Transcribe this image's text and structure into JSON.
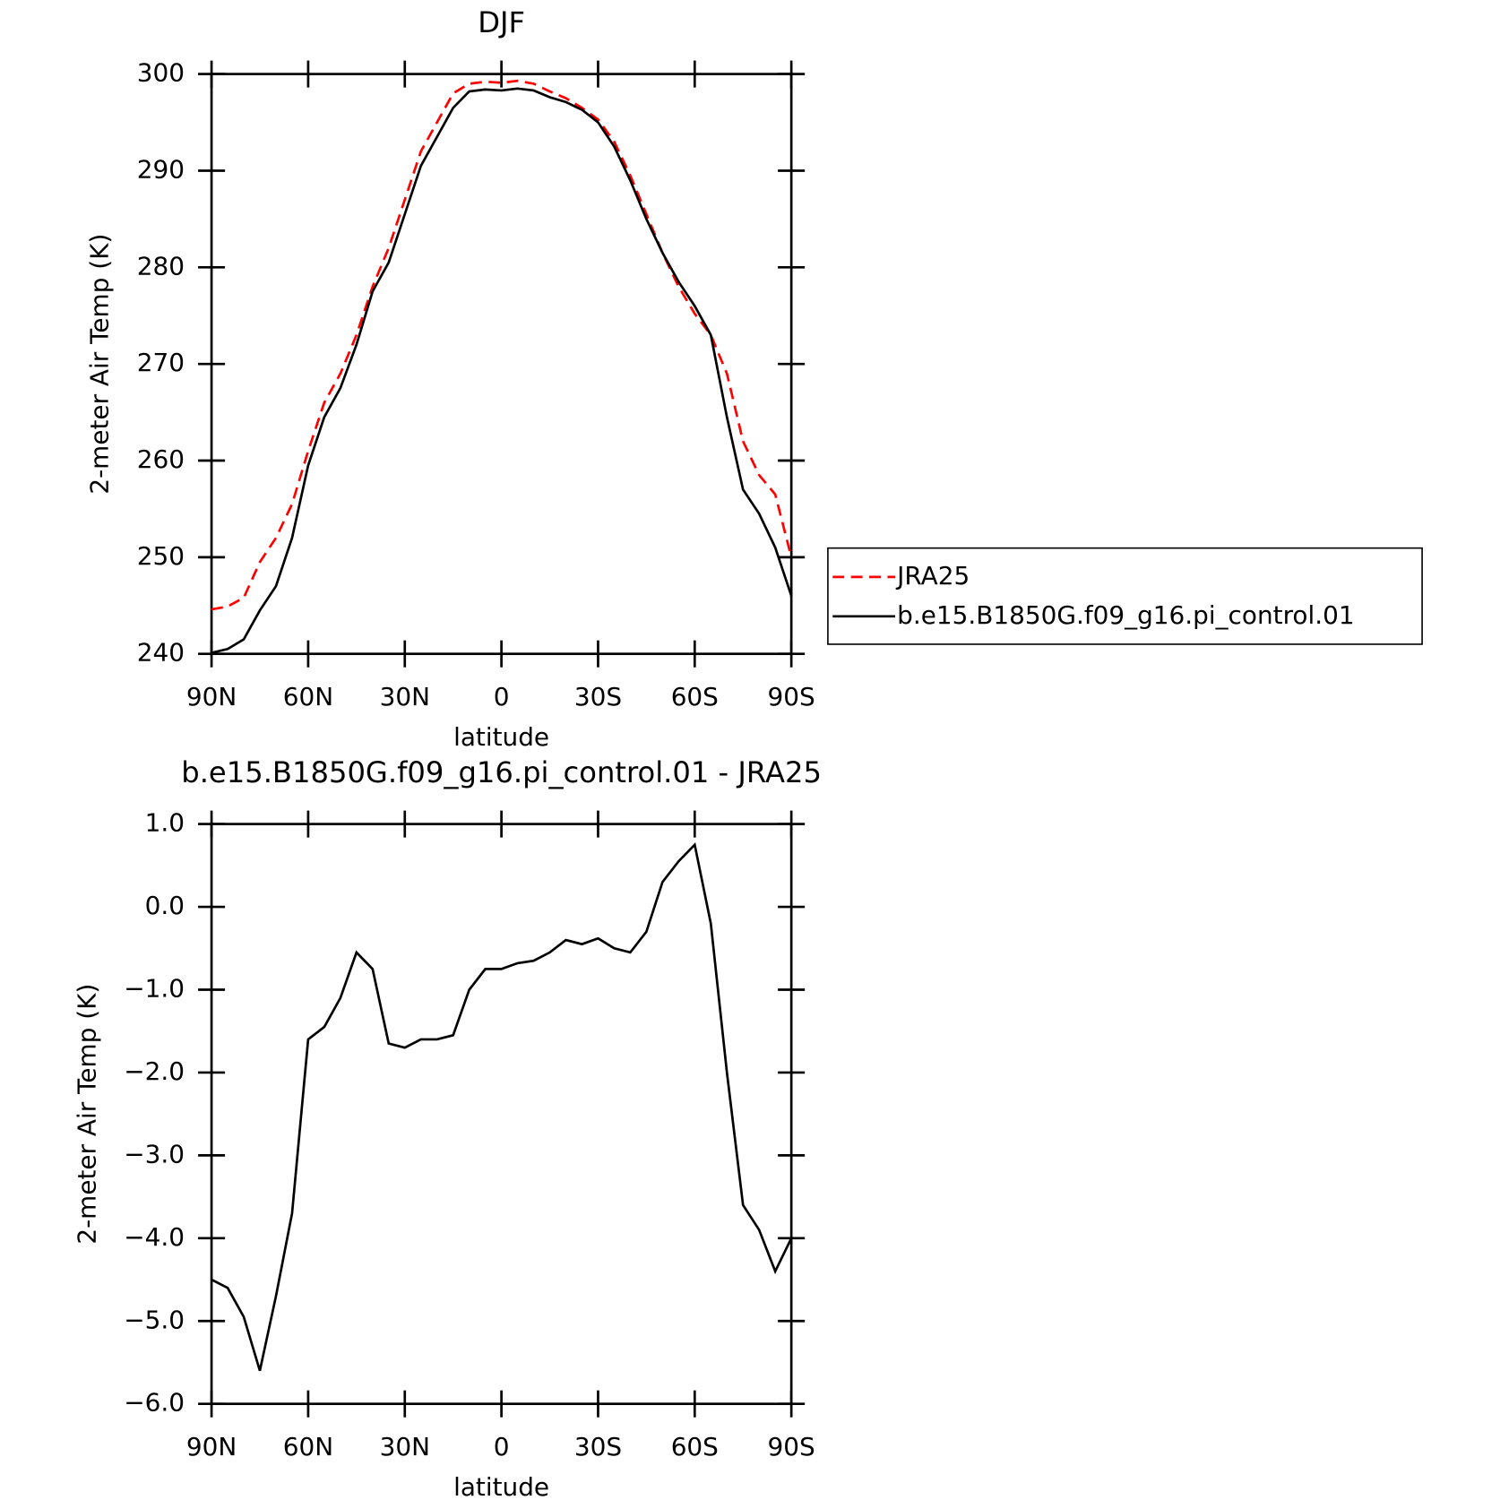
{
  "chart_data": [
    {
      "type": "line",
      "title": "DJF",
      "xlabel": "latitude",
      "ylabel": "2-meter Air Temp (K)",
      "x": [
        90,
        85,
        80,
        75,
        70,
        65,
        60,
        55,
        50,
        45,
        40,
        35,
        30,
        25,
        20,
        15,
        10,
        5,
        0,
        -5,
        -10,
        -15,
        -20,
        -25,
        -30,
        -35,
        -40,
        -45,
        -50,
        -55,
        -60,
        -65,
        -70,
        -75,
        -80,
        -85,
        -90
      ],
      "series": [
        {
          "name": "JRA25",
          "color": "#ff0000",
          "dash": "dashed",
          "values": [
            244.6,
            244.9,
            245.8,
            249.5,
            252,
            255.5,
            261,
            266,
            269,
            273,
            278,
            282,
            287,
            292,
            295,
            298,
            299,
            299.2,
            299.1,
            299.3,
            299,
            298.2,
            297.5,
            296.5,
            295.3,
            293,
            289.5,
            285.5,
            281.5,
            278,
            275.2,
            273,
            269,
            262,
            258.5,
            256.5,
            250
          ]
        },
        {
          "name": "b.e15.B1850G.f09_g16.pi_control.01",
          "color": "#000000",
          "dash": "solid",
          "values": [
            240.1,
            240.5,
            241.5,
            244.5,
            247,
            252,
            259.5,
            264.5,
            267.5,
            272,
            277.5,
            280.5,
            285.5,
            290.5,
            293.5,
            296.5,
            298.2,
            298.4,
            298.3,
            298.5,
            298.3,
            297.6,
            297.1,
            296.3,
            295,
            292.5,
            289,
            285,
            281.5,
            278.5,
            276,
            273,
            264.5,
            257,
            254.5,
            251,
            246
          ]
        }
      ],
      "xlim": [
        90,
        -90
      ],
      "xticks": [
        {
          "value": 90,
          "label": "90N"
        },
        {
          "value": 60,
          "label": "60N"
        },
        {
          "value": 30,
          "label": "30N"
        },
        0,
        {
          "value": -30,
          "label": "30S"
        },
        {
          "value": -60,
          "label": "60S"
        },
        {
          "value": -90,
          "label": "90S"
        }
      ],
      "ylim": [
        240,
        300
      ],
      "yticks": [
        240,
        250,
        260,
        270,
        280,
        290,
        300
      ],
      "legend": "right"
    },
    {
      "type": "line",
      "title": "b.e15.B1850G.f09_g16.pi_control.01 - JRA25",
      "xlabel": "latitude",
      "ylabel": "2-meter Air Temp (K)",
      "x": [
        90,
        85,
        80,
        75,
        70,
        65,
        60,
        55,
        50,
        45,
        40,
        35,
        30,
        25,
        20,
        15,
        10,
        5,
        0,
        -5,
        -10,
        -15,
        -20,
        -25,
        -30,
        -35,
        -40,
        -45,
        -50,
        -55,
        -60,
        -65,
        -70,
        -75,
        -80,
        -85,
        -90
      ],
      "series": [
        {
          "color": "#000000",
          "dash": "solid",
          "values": [
            -4.5,
            -4.6,
            -4.95,
            -5.6,
            -4.7,
            -3.7,
            -1.6,
            -1.45,
            -1.1,
            -0.55,
            -0.75,
            -1.65,
            -1.7,
            -1.6,
            -1.6,
            -1.55,
            -1.0,
            -0.75,
            -0.75,
            -0.68,
            -0.65,
            -0.55,
            -0.4,
            -0.45,
            -0.38,
            -0.5,
            -0.55,
            -0.3,
            0.3,
            0.55,
            0.75,
            -0.2,
            -2.0,
            -3.6,
            -3.9,
            -4.4,
            -4.0
          ]
        }
      ],
      "xlim": [
        90,
        -90
      ],
      "xticks": [
        {
          "value": 90,
          "label": "90N"
        },
        {
          "value": 60,
          "label": "60N"
        },
        {
          "value": 30,
          "label": "30N"
        },
        0,
        {
          "value": -30,
          "label": "30S"
        },
        {
          "value": -60,
          "label": "60S"
        },
        {
          "value": -90,
          "label": "90S"
        }
      ],
      "ylim": [
        -6,
        1
      ],
      "yticks": [
        {
          "value": -6,
          "label": "−6.0"
        },
        {
          "value": -5,
          "label": "−5.0"
        },
        {
          "value": -4,
          "label": "−4.0"
        },
        {
          "value": -3,
          "label": "−3.0"
        },
        {
          "value": -2,
          "label": "−2.0"
        },
        {
          "value": -1,
          "label": "−1.0"
        },
        {
          "value": 0,
          "label": "0.0"
        },
        {
          "value": 1,
          "label": "1.0"
        }
      ]
    }
  ]
}
